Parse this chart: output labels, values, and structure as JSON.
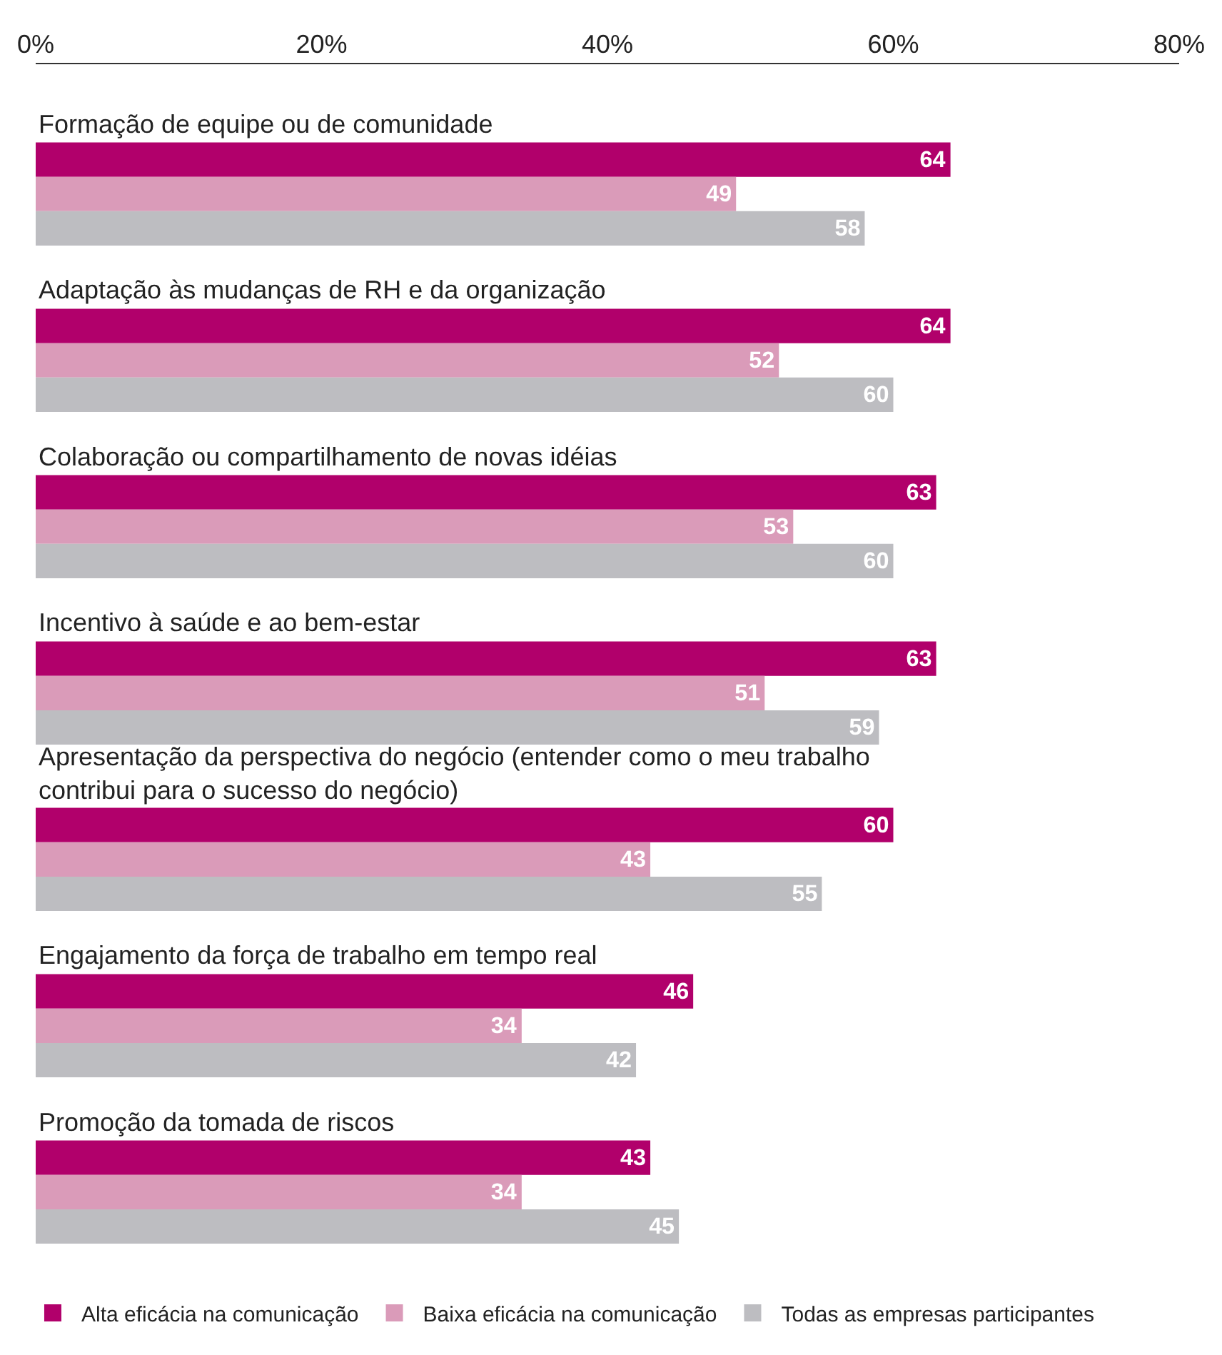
{
  "chart_data": {
    "type": "bar",
    "orientation": "horizontal",
    "categories": [
      "Formação de equipe ou de comunidade",
      "Adaptação às mudanças de RH e da organização",
      "Colaboração ou compartilhamento de novas idéias",
      "Incentivo à saúde e ao bem-estar",
      "Apresentação da perspectiva do negócio (entender como o meu trabalho contribui para o sucesso do negócio)",
      "Engajamento da força de trabalho em tempo real",
      "Promoção da tomada de riscos"
    ],
    "series": [
      {
        "name": "Alta eficácia na comunicação",
        "color": "#b1006b",
        "values": [
          64,
          64,
          63,
          63,
          60,
          46,
          43
        ]
      },
      {
        "name": "Baixa eficácia na comunicação",
        "color": "#da9bb9",
        "values": [
          49,
          52,
          53,
          51,
          43,
          34,
          34
        ]
      },
      {
        "name": "Todas as empresas participantes",
        "color": "#bdbdc1",
        "values": [
          58,
          60,
          60,
          59,
          55,
          42,
          45
        ]
      }
    ],
    "xlim": [
      0,
      80
    ],
    "xticks": [
      {
        "value": 0,
        "label": "0%"
      },
      {
        "value": 20,
        "label": "20%"
      },
      {
        "value": 40,
        "label": "40%"
      },
      {
        "value": 60,
        "label": "60%"
      },
      {
        "value": 80,
        "label": "80%"
      }
    ],
    "data_labels": true,
    "grid": false,
    "legend": "bottom"
  }
}
